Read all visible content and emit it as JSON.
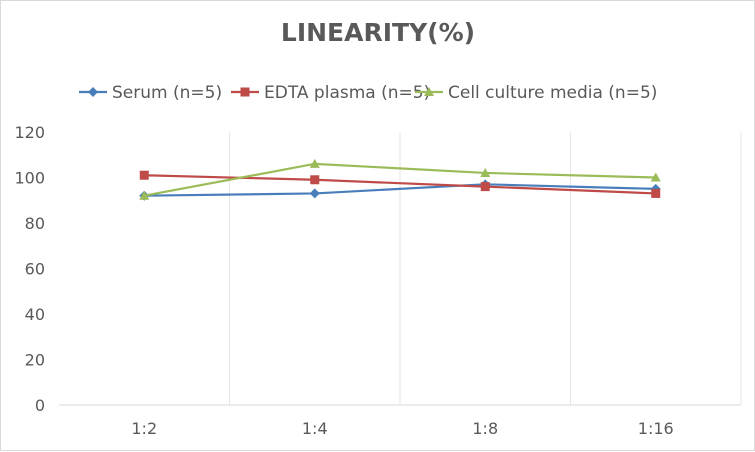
{
  "chart_data": {
    "type": "line",
    "title": "LINEARITY(%)",
    "xlabel": "",
    "ylabel": "",
    "categories": [
      "1:2",
      "1:4",
      "1:8",
      "1:16"
    ],
    "ylim": [
      0,
      120
    ],
    "yticks": [
      0,
      20,
      40,
      60,
      80,
      100,
      120
    ],
    "grid": "vertical",
    "legend": "top",
    "series": [
      {
        "name": "Serum (n=5)",
        "color": "#4a7ebb",
        "marker": "diamond",
        "values": [
          92,
          93,
          97,
          95
        ]
      },
      {
        "name": "EDTA plasma (n=5)",
        "color": "#be4b48",
        "marker": "square",
        "values": [
          101,
          99,
          96,
          93
        ]
      },
      {
        "name": "Cell culture media (n=5)",
        "color": "#9bbb59",
        "marker": "triangle",
        "values": [
          92,
          106,
          102,
          100
        ]
      }
    ]
  }
}
